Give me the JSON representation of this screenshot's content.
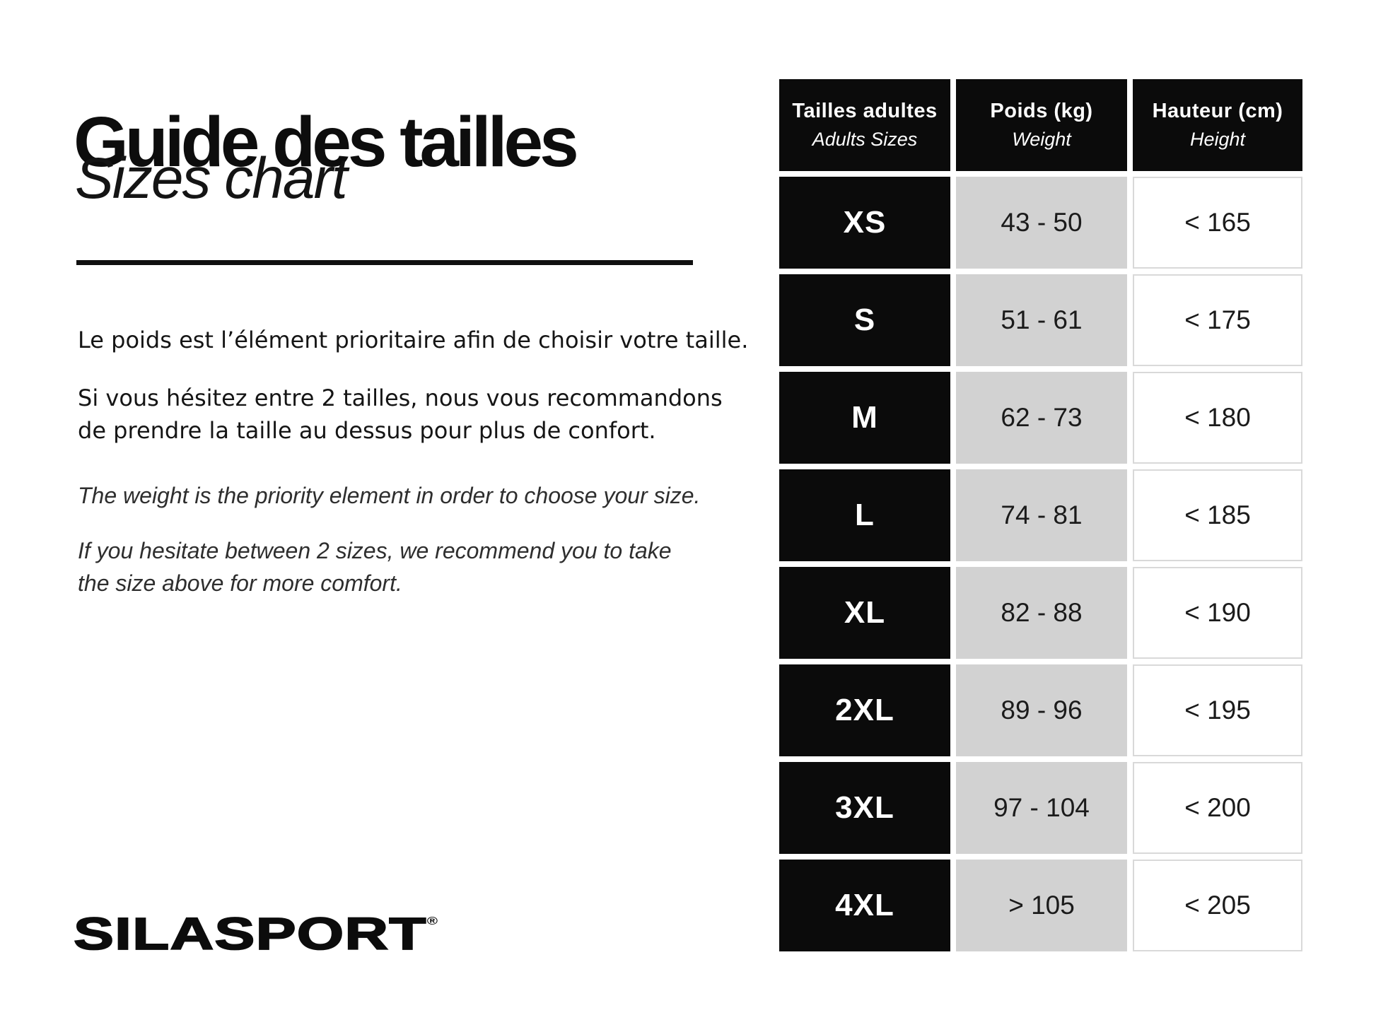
{
  "header": {
    "title_fr": "Guide des tailles",
    "title_en": "Sizes chart"
  },
  "intro": {
    "fr_weight": "Le poids est l’élément prioritaire afin de choisir votre taille.",
    "fr_hesitate_line1": "Si vous hésitez entre 2 tailles, nous vous recommandons",
    "fr_hesitate_line2": "de prendre la taille au dessus pour plus de confort.",
    "en_weight": "The weight is the priority element in order to choose your size.",
    "en_hesitate_line1": "If you hesitate between 2 sizes, we recommend you to take",
    "en_hesitate_line2": "the size above for more comfort."
  },
  "logo": {
    "brand": "SILASPORT",
    "registered": "®"
  },
  "table": {
    "columns": [
      {
        "label_fr": "Tailles adultes",
        "label_en": "Adults Sizes"
      },
      {
        "label_fr": "Poids (kg)",
        "label_en": "Weight"
      },
      {
        "label_fr": "Hauteur (cm)",
        "label_en": "Height"
      }
    ],
    "rows": [
      {
        "size": "XS",
        "weight": "43 - 50",
        "height": "< 165"
      },
      {
        "size": "S",
        "weight": "51 - 61",
        "height": "< 175"
      },
      {
        "size": "M",
        "weight": "62 - 73",
        "height": "< 180"
      },
      {
        "size": "L",
        "weight": "74 - 81",
        "height": "< 185"
      },
      {
        "size": "XL",
        "weight": "82 - 88",
        "height": "< 190"
      },
      {
        "size": "2XL",
        "weight": "89 - 96",
        "height": "< 195"
      },
      {
        "size": "3XL",
        "weight": "97 - 104",
        "height": "< 200"
      },
      {
        "size": "4XL",
        "weight": "> 105",
        "height": "< 205"
      }
    ]
  },
  "colors": {
    "black_cell": "#0b0b0b",
    "gray_cell": "#d2d2d2",
    "white_cell": "#ffffff",
    "white_cell_border": "#d9d9d9",
    "text": "#111111"
  },
  "chart_data": {
    "type": "table",
    "title": "Guide des tailles / Sizes chart",
    "columns": [
      "Tailles adultes / Adults Sizes",
      "Poids (kg) / Weight",
      "Hauteur (cm) / Height"
    ],
    "rows": [
      [
        "XS",
        "43 - 50",
        "< 165"
      ],
      [
        "S",
        "51 - 61",
        "< 175"
      ],
      [
        "M",
        "62 - 73",
        "< 180"
      ],
      [
        "L",
        "74 - 81",
        "< 185"
      ],
      [
        "XL",
        "82 - 88",
        "< 190"
      ],
      [
        "2XL",
        "89 - 96",
        "< 195"
      ],
      [
        "3XL",
        "97 - 104",
        "< 200"
      ],
      [
        "4XL",
        "> 105",
        "< 205"
      ]
    ]
  }
}
